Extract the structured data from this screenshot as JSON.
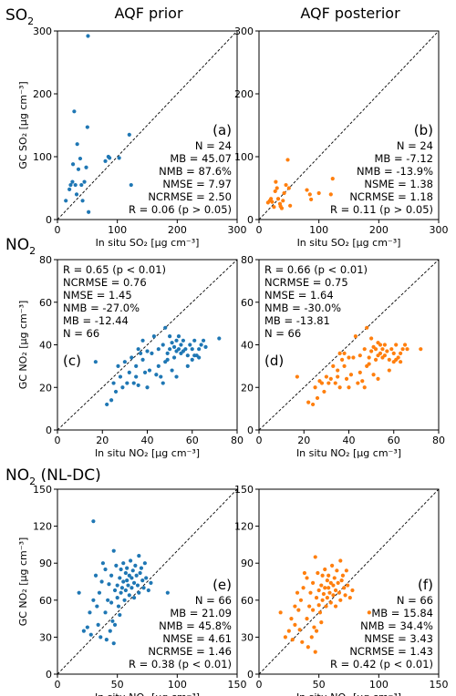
{
  "column_titles": [
    "AQF prior",
    "AQF posterior"
  ],
  "row_titles": [
    {
      "main": "SO",
      "sub": "2",
      "tail": ""
    },
    {
      "main": "NO",
      "sub": "2",
      "tail": ""
    },
    {
      "main": "NO",
      "sub": "2",
      "tail": " (NL-DC)"
    }
  ],
  "ylabels": {
    "so2": "GC SO₂ [μg cm⁻³]",
    "no2": "GC NO₂ [μg cm⁻³]"
  },
  "xlabels": {
    "so2": "In situ SO₂ [μg cm⁻³]",
    "no2": "In situ NO₂ [μg cm⁻³]"
  },
  "colors": {
    "prior": "#1f77b4",
    "posterior": "#ff7f0e"
  },
  "chart_data": [
    {
      "type": "scatter",
      "panel": "(a)",
      "species": "so2",
      "color_key": "prior",
      "xlim": [
        0,
        300
      ],
      "ylim": [
        0,
        300
      ],
      "xticks": [
        0,
        100,
        200,
        300
      ],
      "yticks": [
        0,
        100,
        200,
        300
      ],
      "one_to_one_line": true,
      "stats_position": "bottom-right",
      "stats": [
        "N = 24",
        "MB = 45.07",
        "NMB = 87.6%",
        "NMSE = 7.97",
        "NCRMSE = 2.50",
        "R = 0.06 (p > 0.05)"
      ],
      "points": [
        [
          14,
          30
        ],
        [
          20,
          48
        ],
        [
          22,
          55
        ],
        [
          25,
          60
        ],
        [
          26,
          88
        ],
        [
          28,
          172
        ],
        [
          30,
          55
        ],
        [
          32,
          40
        ],
        [
          33,
          120
        ],
        [
          35,
          80
        ],
        [
          38,
          97
        ],
        [
          40,
          55
        ],
        [
          42,
          30
        ],
        [
          45,
          60
        ],
        [
          48,
          83
        ],
        [
          50,
          147
        ],
        [
          51,
          292
        ],
        [
          52,
          12
        ],
        [
          80,
          93
        ],
        [
          85,
          100
        ],
        [
          87,
          98
        ],
        [
          103,
          98
        ],
        [
          120,
          135
        ],
        [
          123,
          55
        ]
      ]
    },
    {
      "type": "scatter",
      "panel": "(b)",
      "species": "so2",
      "color_key": "posterior",
      "xlim": [
        0,
        300
      ],
      "ylim": [
        0,
        300
      ],
      "xticks": [
        0,
        100,
        200,
        300
      ],
      "yticks": [
        0,
        100,
        200,
        300
      ],
      "one_to_one_line": true,
      "stats_position": "bottom-right",
      "stats": [
        "N = 24",
        "MB = -7.12",
        "NMB = -13.9%",
        "NSME = 1.38",
        "NCRMSE = 1.18",
        "R = 0.11 (p > 0.05)"
      ],
      "points": [
        [
          15,
          27
        ],
        [
          18,
          30
        ],
        [
          20,
          33
        ],
        [
          22,
          28
        ],
        [
          25,
          20
        ],
        [
          27,
          45
        ],
        [
          28,
          60
        ],
        [
          30,
          50
        ],
        [
          32,
          33
        ],
        [
          35,
          25
        ],
        [
          36,
          21
        ],
        [
          38,
          18
        ],
        [
          40,
          30
        ],
        [
          42,
          42
        ],
        [
          45,
          55
        ],
        [
          48,
          95
        ],
        [
          50,
          50
        ],
        [
          52,
          22
        ],
        [
          80,
          47
        ],
        [
          85,
          40
        ],
        [
          87,
          32
        ],
        [
          100,
          42
        ],
        [
          120,
          40
        ],
        [
          123,
          65
        ]
      ]
    },
    {
      "type": "scatter",
      "panel": "(c)",
      "species": "no2",
      "color_key": "prior",
      "xlim": [
        0,
        80
      ],
      "ylim": [
        0,
        80
      ],
      "xticks": [
        0,
        20,
        40,
        60,
        80
      ],
      "yticks": [
        0,
        20,
        40,
        60,
        80
      ],
      "one_to_one_line": true,
      "stats_position": "top-left",
      "stats": [
        "R = 0.65 (p < 0.01)",
        "NCRMSE = 0.76",
        "NMSE = 1.45",
        "NMB = -27.0%",
        "MB = -12.44",
        "N = 66"
      ],
      "points": [
        [
          17,
          32
        ],
        [
          22,
          12
        ],
        [
          24,
          14
        ],
        [
          25,
          22
        ],
        [
          26,
          18
        ],
        [
          27,
          30
        ],
        [
          28,
          25
        ],
        [
          29,
          20
        ],
        [
          30,
          32
        ],
        [
          31,
          22
        ],
        [
          32,
          27
        ],
        [
          33,
          34
        ],
        [
          34,
          22
        ],
        [
          35,
          25
        ],
        [
          35,
          30
        ],
        [
          36,
          21
        ],
        [
          36,
          38
        ],
        [
          37,
          36
        ],
        [
          38,
          42
        ],
        [
          38,
          33
        ],
        [
          39,
          27
        ],
        [
          40,
          37
        ],
        [
          40,
          20
        ],
        [
          41,
          28
        ],
        [
          42,
          36
        ],
        [
          43,
          44
        ],
        [
          44,
          26
        ],
        [
          45,
          38
        ],
        [
          45,
          30
        ],
        [
          46,
          25
        ],
        [
          47,
          22
        ],
        [
          47,
          40
        ],
        [
          48,
          32
        ],
        [
          48,
          48
        ],
        [
          49,
          36
        ],
        [
          50,
          38
        ],
        [
          50,
          44
        ],
        [
          51,
          28
        ],
        [
          52,
          34
        ],
        [
          52,
          39
        ],
        [
          53,
          42
        ],
        [
          53,
          25
        ],
        [
          54,
          44
        ],
        [
          54,
          38
        ],
        [
          55,
          40
        ],
        [
          55,
          36
        ],
        [
          56,
          37
        ],
        [
          56,
          42
        ],
        [
          57,
          38
        ],
        [
          58,
          35
        ],
        [
          58,
          30
        ],
        [
          59,
          40
        ],
        [
          60,
          33
        ],
        [
          60,
          38
        ],
        [
          61,
          42
        ],
        [
          61,
          35
        ],
        [
          62,
          35
        ],
        [
          63,
          34
        ],
        [
          63,
          38
        ],
        [
          64,
          40
        ],
        [
          65,
          42
        ],
        [
          66,
          39
        ],
        [
          53,
          37
        ],
        [
          51,
          41
        ],
        [
          49,
          33
        ],
        [
          72,
          43
        ]
      ]
    },
    {
      "type": "scatter",
      "panel": "(d)",
      "species": "no2",
      "color_key": "posterior",
      "xlim": [
        0,
        80
      ],
      "ylim": [
        0,
        80
      ],
      "xticks": [
        0,
        20,
        40,
        60,
        80
      ],
      "yticks": [
        0,
        20,
        40,
        60,
        80
      ],
      "one_to_one_line": true,
      "stats_position": "top-left",
      "stats": [
        "R = 0.66 (p < 0.01)",
        "NCRMSE = 0.75",
        "NMSE = 1.64",
        "NMB = -30.0%",
        "MB = -13.81",
        "N = 66"
      ],
      "points": [
        [
          17,
          25
        ],
        [
          22,
          13
        ],
        [
          24,
          12
        ],
        [
          25,
          20
        ],
        [
          26,
          15
        ],
        [
          27,
          23
        ],
        [
          28,
          22
        ],
        [
          29,
          18
        ],
        [
          30,
          25
        ],
        [
          31,
          22
        ],
        [
          32,
          24
        ],
        [
          33,
          30
        ],
        [
          34,
          22
        ],
        [
          35,
          25
        ],
        [
          35,
          28
        ],
        [
          36,
          20
        ],
        [
          36,
          36
        ],
        [
          37,
          33
        ],
        [
          38,
          36
        ],
        [
          38,
          30
        ],
        [
          39,
          24
        ],
        [
          40,
          34
        ],
        [
          40,
          20
        ],
        [
          41,
          26
        ],
        [
          42,
          34
        ],
        [
          43,
          44
        ],
        [
          44,
          22
        ],
        [
          45,
          35
        ],
        [
          45,
          27
        ],
        [
          46,
          23
        ],
        [
          47,
          20
        ],
        [
          47,
          38
        ],
        [
          48,
          30
        ],
        [
          48,
          48
        ],
        [
          49,
          34
        ],
        [
          50,
          37
        ],
        [
          50,
          43
        ],
        [
          51,
          26
        ],
        [
          52,
          33
        ],
        [
          52,
          38
        ],
        [
          53,
          41
        ],
        [
          53,
          24
        ],
        [
          54,
          40
        ],
        [
          54,
          36
        ],
        [
          55,
          38
        ],
        [
          55,
          34
        ],
        [
          56,
          35
        ],
        [
          56,
          40
        ],
        [
          57,
          37
        ],
        [
          58,
          33
        ],
        [
          58,
          28
        ],
        [
          59,
          38
        ],
        [
          60,
          32
        ],
        [
          60,
          36
        ],
        [
          61,
          40
        ],
        [
          61,
          33
        ],
        [
          62,
          34
        ],
        [
          63,
          32
        ],
        [
          63,
          36
        ],
        [
          64,
          38
        ],
        [
          65,
          40
        ],
        [
          66,
          38
        ],
        [
          53,
          35
        ],
        [
          51,
          39
        ],
        [
          49,
          31
        ],
        [
          72,
          38
        ]
      ]
    },
    {
      "type": "scatter",
      "panel": "(e)",
      "species": "no2",
      "color_key": "prior",
      "xlim": [
        0,
        150
      ],
      "ylim": [
        0,
        150
      ],
      "xticks": [
        0,
        50,
        100,
        150
      ],
      "yticks": [
        0,
        30,
        60,
        90,
        120,
        150
      ],
      "one_to_one_line": true,
      "stats_position": "bottom-right",
      "stats": [
        "N = 66",
        "MB = 21.09",
        "NMB = 45.8%",
        "NMSE = 4.61",
        "NCRMSE = 1.46",
        "R = 0.38 (p < 0.01)"
      ],
      "points": [
        [
          18,
          66
        ],
        [
          22,
          35
        ],
        [
          25,
          38
        ],
        [
          27,
          50
        ],
        [
          28,
          32
        ],
        [
          30,
          124
        ],
        [
          30,
          60
        ],
        [
          32,
          80
        ],
        [
          33,
          55
        ],
        [
          34,
          40
        ],
        [
          35,
          66
        ],
        [
          36,
          30
        ],
        [
          37,
          75
        ],
        [
          38,
          90
        ],
        [
          40,
          50
        ],
        [
          40,
          85
        ],
        [
          41,
          28
        ],
        [
          42,
          60
        ],
        [
          43,
          73
        ],
        [
          44,
          35
        ],
        [
          45,
          80
        ],
        [
          45,
          58
        ],
        [
          46,
          43
        ],
        [
          47,
          100
        ],
        [
          47,
          25
        ],
        [
          48,
          68
        ],
        [
          48,
          40
        ],
        [
          49,
          88
        ],
        [
          50,
          72
        ],
        [
          50,
          62
        ],
        [
          51,
          55
        ],
        [
          52,
          78
        ],
        [
          52,
          48
        ],
        [
          53,
          85
        ],
        [
          53,
          66
        ],
        [
          54,
          70
        ],
        [
          55,
          75
        ],
        [
          55,
          90
        ],
        [
          56,
          60
        ],
        [
          57,
          82
        ],
        [
          57,
          68
        ],
        [
          58,
          76
        ],
        [
          58,
          86
        ],
        [
          59,
          72
        ],
        [
          60,
          80
        ],
        [
          60,
          64
        ],
        [
          61,
          92
        ],
        [
          62,
          70
        ],
        [
          62,
          78
        ],
        [
          63,
          84
        ],
        [
          64,
          74
        ],
        [
          64,
          62
        ],
        [
          65,
          88
        ],
        [
          66,
          80
        ],
        [
          67,
          72
        ],
        [
          68,
          96
        ],
        [
          68,
          66
        ],
        [
          69,
          82
        ],
        [
          70,
          86
        ],
        [
          71,
          76
        ],
        [
          72,
          70
        ],
        [
          73,
          90
        ],
        [
          74,
          78
        ],
        [
          76,
          68
        ],
        [
          78,
          74
        ],
        [
          92,
          66
        ]
      ]
    },
    {
      "type": "scatter",
      "panel": "(f)",
      "species": "no2",
      "color_key": "posterior",
      "xlim": [
        0,
        150
      ],
      "ylim": [
        0,
        150
      ],
      "xticks": [
        0,
        50,
        100,
        150
      ],
      "yticks": [
        0,
        30,
        60,
        90,
        120,
        150
      ],
      "one_to_one_line": true,
      "stats_position": "bottom-right",
      "stats": [
        "N = 66",
        "MB = 15.84",
        "NMB = 34.4%",
        "NMSE = 3.43",
        "NCRMSE = 1.43",
        "R = 0.42 (p < 0.01)"
      ],
      "points": [
        [
          18,
          50
        ],
        [
          22,
          30
        ],
        [
          25,
          35
        ],
        [
          27,
          45
        ],
        [
          28,
          28
        ],
        [
          30,
          40
        ],
        [
          30,
          55
        ],
        [
          32,
          66
        ],
        [
          33,
          52
        ],
        [
          34,
          36
        ],
        [
          35,
          60
        ],
        [
          36,
          26
        ],
        [
          37,
          70
        ],
        [
          38,
          82
        ],
        [
          40,
          45
        ],
        [
          40,
          78
        ],
        [
          41,
          22
        ],
        [
          42,
          55
        ],
        [
          43,
          66
        ],
        [
          44,
          30
        ],
        [
          45,
          74
        ],
        [
          45,
          52
        ],
        [
          46,
          38
        ],
        [
          47,
          95
        ],
        [
          47,
          18
        ],
        [
          48,
          62
        ],
        [
          48,
          35
        ],
        [
          49,
          82
        ],
        [
          50,
          68
        ],
        [
          50,
          56
        ],
        [
          51,
          50
        ],
        [
          52,
          72
        ],
        [
          52,
          42
        ],
        [
          53,
          80
        ],
        [
          53,
          60
        ],
        [
          54,
          65
        ],
        [
          55,
          70
        ],
        [
          55,
          85
        ],
        [
          56,
          55
        ],
        [
          57,
          76
        ],
        [
          57,
          62
        ],
        [
          58,
          70
        ],
        [
          58,
          80
        ],
        [
          59,
          66
        ],
        [
          60,
          74
        ],
        [
          60,
          58
        ],
        [
          61,
          88
        ],
        [
          62,
          64
        ],
        [
          62,
          72
        ],
        [
          63,
          78
        ],
        [
          64,
          68
        ],
        [
          64,
          55
        ],
        [
          65,
          84
        ],
        [
          66,
          74
        ],
        [
          67,
          66
        ],
        [
          68,
          92
        ],
        [
          68,
          60
        ],
        [
          69,
          76
        ],
        [
          70,
          80
        ],
        [
          71,
          70
        ],
        [
          72,
          64
        ],
        [
          73,
          84
        ],
        [
          74,
          72
        ],
        [
          76,
          62
        ],
        [
          78,
          68
        ],
        [
          92,
          50
        ]
      ]
    }
  ]
}
